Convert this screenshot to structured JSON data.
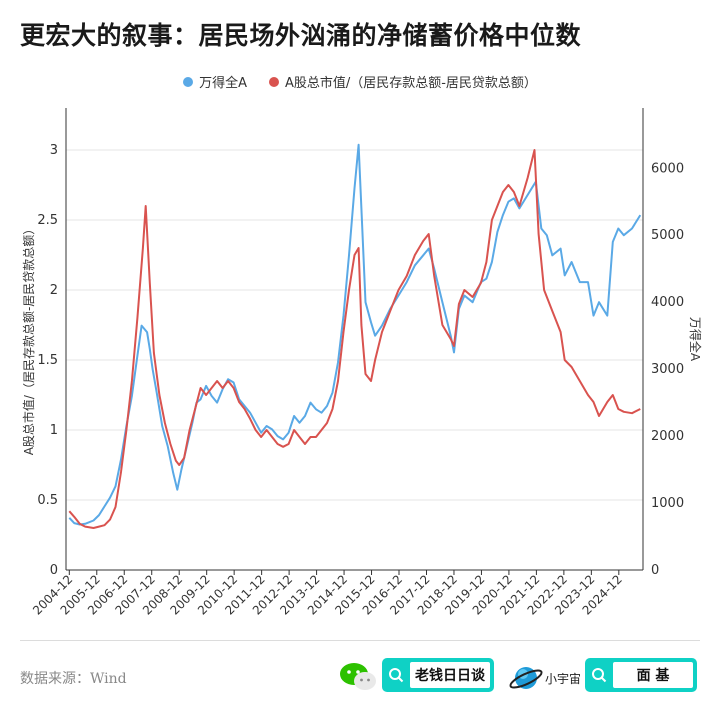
{
  "title": "更宏大的叙事：居民场外汹涌的净储蓄价格中位数",
  "legend": [
    {
      "label": "万得全A",
      "color": "#5aa9e6"
    },
    {
      "label": "A股总市值/（居民存款总额-居民贷款总额）",
      "color": "#d9534f"
    }
  ],
  "footer": {
    "source": "数据来源：Wind",
    "search1": "老钱日日谈",
    "brand": "小宇宙",
    "search2": "面 基"
  },
  "chart_data": {
    "type": "line",
    "ylabel_left": "A股总市值/（居民存款总额-居民贷款总额）",
    "ylabel_right": "万得全A",
    "ylim_left": [
      0,
      3.3
    ],
    "ylim_right": [
      0,
      6900
    ],
    "yticks_left": [
      0,
      0.5,
      1,
      1.5,
      2,
      2.5,
      3
    ],
    "yticks_right": [
      0,
      1000,
      2000,
      3000,
      4000,
      5000,
      6000
    ],
    "xlim": [
      2004.8,
      2025.8
    ],
    "xtick_labels": [
      "2004-12",
      "2005-12",
      "2006-12",
      "2007-12",
      "2008-12",
      "2009-12",
      "2010-12",
      "2011-12",
      "2012-12",
      "2013-12",
      "2014-12",
      "2015-12",
      "2016-12",
      "2017-12",
      "2018-12",
      "2019-12",
      "2020-12",
      "2021-12",
      "2022-12",
      "2023-12",
      "2024-12"
    ],
    "xtick_values": [
      2004.92,
      2005.92,
      2006.92,
      2007.92,
      2008.92,
      2009.92,
      2010.92,
      2011.92,
      2012.92,
      2013.92,
      2014.92,
      2015.92,
      2016.92,
      2017.92,
      2018.92,
      2019.92,
      2020.92,
      2021.92,
      2022.92,
      2023.92,
      2024.92
    ],
    "series": [
      {
        "name": "万得全A",
        "axis": "right",
        "color": "#5aa9e6",
        "x": [
          2004.92,
          2005.1,
          2005.3,
          2005.5,
          2005.8,
          2006.0,
          2006.2,
          2006.4,
          2006.6,
          2006.8,
          2007.0,
          2007.2,
          2007.4,
          2007.55,
          2007.75,
          2007.85,
          2007.95,
          2008.1,
          2008.3,
          2008.5,
          2008.7,
          2008.85,
          2009.0,
          2009.2,
          2009.4,
          2009.55,
          2009.7,
          2009.9,
          2010.1,
          2010.3,
          2010.5,
          2010.7,
          2010.9,
          2011.1,
          2011.3,
          2011.5,
          2011.7,
          2011.9,
          2012.1,
          2012.3,
          2012.5,
          2012.7,
          2012.9,
          2013.1,
          2013.3,
          2013.5,
          2013.7,
          2013.9,
          2014.1,
          2014.3,
          2014.5,
          2014.7,
          2014.9,
          2015.1,
          2015.3,
          2015.45,
          2015.55,
          2015.7,
          2015.9,
          2016.05,
          2016.3,
          2016.6,
          2016.9,
          2017.2,
          2017.5,
          2017.8,
          2018.0,
          2018.2,
          2018.5,
          2018.8,
          2018.92,
          2019.1,
          2019.3,
          2019.6,
          2019.9,
          2020.1,
          2020.3,
          2020.5,
          2020.7,
          2020.9,
          2021.1,
          2021.3,
          2021.6,
          2021.9,
          2022.1,
          2022.3,
          2022.5,
          2022.8,
          2022.95,
          2023.2,
          2023.5,
          2023.8,
          2024.0,
          2024.2,
          2024.5,
          2024.7,
          2024.9,
          2025.1,
          2025.4,
          2025.7
        ],
        "values": [
          780,
          700,
          680,
          690,
          740,
          820,
          950,
          1080,
          1250,
          1650,
          2150,
          2600,
          3200,
          3650,
          3550,
          3300,
          3000,
          2650,
          2150,
          1850,
          1450,
          1200,
          1500,
          1850,
          2200,
          2500,
          2550,
          2750,
          2600,
          2500,
          2700,
          2850,
          2800,
          2550,
          2450,
          2350,
          2200,
          2050,
          2150,
          2100,
          2000,
          1950,
          2050,
          2300,
          2200,
          2300,
          2500,
          2400,
          2350,
          2450,
          2650,
          3100,
          3800,
          4700,
          5700,
          6350,
          5400,
          4000,
          3700,
          3500,
          3650,
          3900,
          4100,
          4300,
          4550,
          4700,
          4800,
          4500,
          4000,
          3500,
          3250,
          3900,
          4100,
          4000,
          4300,
          4350,
          4600,
          5050,
          5300,
          5500,
          5550,
          5400,
          5600,
          5800,
          5100,
          5000,
          4700,
          4800,
          4400,
          4600,
          4300,
          4300,
          3800,
          4000,
          3800,
          4900,
          5100,
          5000,
          5100,
          5300
        ]
      },
      {
        "name": "A股总市值/（居民存款总额-居民贷款总额）",
        "axis": "left",
        "color": "#d9534f",
        "x": [
          2004.92,
          2005.1,
          2005.3,
          2005.5,
          2005.8,
          2006.0,
          2006.2,
          2006.4,
          2006.6,
          2006.8,
          2007.0,
          2007.2,
          2007.4,
          2007.6,
          2007.7,
          2007.85,
          2008.0,
          2008.2,
          2008.4,
          2008.6,
          2008.8,
          2008.92,
          2009.1,
          2009.3,
          2009.5,
          2009.7,
          2009.9,
          2010.1,
          2010.3,
          2010.5,
          2010.7,
          2010.9,
          2011.1,
          2011.3,
          2011.5,
          2011.7,
          2011.9,
          2012.1,
          2012.3,
          2012.5,
          2012.7,
          2012.9,
          2013.1,
          2013.3,
          2013.5,
          2013.7,
          2013.9,
          2014.1,
          2014.3,
          2014.5,
          2014.7,
          2014.9,
          2015.1,
          2015.3,
          2015.45,
          2015.55,
          2015.7,
          2015.9,
          2016.05,
          2016.3,
          2016.6,
          2016.9,
          2017.2,
          2017.5,
          2017.8,
          2018.0,
          2018.2,
          2018.5,
          2018.8,
          2018.92,
          2019.1,
          2019.3,
          2019.6,
          2019.9,
          2020.1,
          2020.3,
          2020.5,
          2020.7,
          2020.9,
          2021.1,
          2021.3,
          2021.6,
          2021.85,
          2022.0,
          2022.2,
          2022.5,
          2022.8,
          2022.95,
          2023.2,
          2023.5,
          2023.8,
          2024.0,
          2024.2,
          2024.5,
          2024.7,
          2024.9,
          2025.1,
          2025.4,
          2025.7
        ],
        "values": [
          0.42,
          0.38,
          0.33,
          0.31,
          0.3,
          0.31,
          0.32,
          0.36,
          0.45,
          0.7,
          1.0,
          1.35,
          1.8,
          2.3,
          2.6,
          2.05,
          1.55,
          1.25,
          1.05,
          0.9,
          0.78,
          0.75,
          0.8,
          1.0,
          1.15,
          1.3,
          1.25,
          1.3,
          1.35,
          1.3,
          1.35,
          1.3,
          1.2,
          1.15,
          1.08,
          1.0,
          0.95,
          1.0,
          0.95,
          0.9,
          0.88,
          0.9,
          1.0,
          0.95,
          0.9,
          0.95,
          0.95,
          1.0,
          1.05,
          1.15,
          1.35,
          1.7,
          2.0,
          2.25,
          2.3,
          1.75,
          1.4,
          1.35,
          1.5,
          1.7,
          1.85,
          2.0,
          2.1,
          2.25,
          2.35,
          2.4,
          2.1,
          1.75,
          1.65,
          1.6,
          1.9,
          2.0,
          1.95,
          2.05,
          2.2,
          2.5,
          2.6,
          2.7,
          2.75,
          2.7,
          2.6,
          2.8,
          3.0,
          2.4,
          2.0,
          1.85,
          1.7,
          1.5,
          1.45,
          1.35,
          1.25,
          1.2,
          1.1,
          1.2,
          1.25,
          1.15,
          1.13,
          1.12,
          1.15
        ]
      }
    ],
    "grid": true,
    "legend_position": "top-center"
  }
}
